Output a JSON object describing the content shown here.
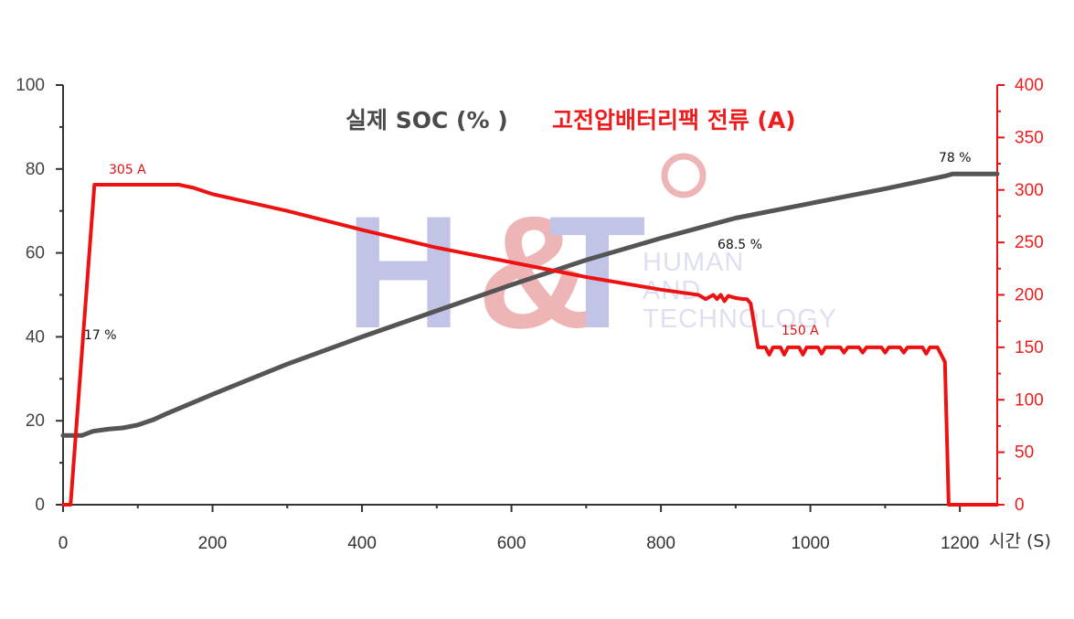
{
  "chart_data": {
    "type": "line",
    "xlabel": "시간 (S)",
    "xlim": [
      0,
      1250
    ],
    "x_ticks": [
      "0",
      "200",
      "400",
      "600",
      "800",
      "1000",
      "1200"
    ],
    "y_left": {
      "ylim": [
        0,
        100
      ],
      "ticks": [
        "0",
        "20",
        "40",
        "60",
        "80",
        "100"
      ],
      "color": "#444444"
    },
    "y_right": {
      "ylim": [
        0,
        400
      ],
      "ticks": [
        "0",
        "50",
        "100",
        "150",
        "200",
        "250",
        "300",
        "350",
        "400"
      ],
      "color": "#ee1c1c"
    },
    "legend": {
      "soc": "실제 SOC (% )",
      "current": "고전압배터리팩 전류 (A)"
    },
    "series": [
      {
        "name": "실제 SOC (% )",
        "axis": "left",
        "color": "#555555",
        "points": [
          [
            0,
            16.5
          ],
          [
            25,
            16.5
          ],
          [
            40,
            17.5
          ],
          [
            60,
            18
          ],
          [
            80,
            18.3
          ],
          [
            100,
            19
          ],
          [
            120,
            20.2
          ],
          [
            140,
            21.8
          ],
          [
            160,
            23.3
          ],
          [
            180,
            24.8
          ],
          [
            200,
            26.3
          ],
          [
            300,
            33.5
          ],
          [
            400,
            40
          ],
          [
            500,
            46.2
          ],
          [
            600,
            52.4
          ],
          [
            700,
            58.3
          ],
          [
            800,
            63.5
          ],
          [
            900,
            68.3
          ],
          [
            1000,
            71.8
          ],
          [
            1100,
            75.3
          ],
          [
            1180,
            78.3
          ],
          [
            1190,
            78.8
          ],
          [
            1250,
            78.8
          ]
        ]
      },
      {
        "name": "고전압배터리팩 전류 (A)",
        "axis": "right",
        "color": "#ee1111",
        "points": [
          [
            0,
            0
          ],
          [
            10,
            0
          ],
          [
            42,
            305
          ],
          [
            100,
            305
          ],
          [
            155,
            305
          ],
          [
            175,
            302
          ],
          [
            200,
            296
          ],
          [
            300,
            280
          ],
          [
            400,
            262
          ],
          [
            500,
            245
          ],
          [
            600,
            231
          ],
          [
            700,
            217
          ],
          [
            800,
            205
          ],
          [
            850,
            200
          ],
          [
            860,
            196
          ],
          [
            870,
            200
          ],
          [
            875,
            196
          ],
          [
            880,
            200
          ],
          [
            885,
            194
          ],
          [
            890,
            199
          ],
          [
            900,
            197
          ],
          [
            910,
            196
          ],
          [
            915,
            196
          ],
          [
            920,
            192
          ],
          [
            930,
            150
          ],
          [
            940,
            150
          ],
          [
            945,
            143
          ],
          [
            950,
            150
          ],
          [
            960,
            150
          ],
          [
            965,
            143
          ],
          [
            970,
            150
          ],
          [
            985,
            150
          ],
          [
            990,
            143
          ],
          [
            995,
            150
          ],
          [
            1010,
            150
          ],
          [
            1015,
            144
          ],
          [
            1020,
            150
          ],
          [
            1040,
            150
          ],
          [
            1045,
            145
          ],
          [
            1050,
            150
          ],
          [
            1065,
            150
          ],
          [
            1070,
            145
          ],
          [
            1075,
            150
          ],
          [
            1095,
            150
          ],
          [
            1100,
            145
          ],
          [
            1105,
            150
          ],
          [
            1120,
            150
          ],
          [
            1125,
            145
          ],
          [
            1130,
            150
          ],
          [
            1150,
            150
          ],
          [
            1155,
            144
          ],
          [
            1160,
            150
          ],
          [
            1170,
            150
          ],
          [
            1180,
            136
          ],
          [
            1185,
            0
          ],
          [
            1250,
            0
          ]
        ]
      }
    ],
    "annotations": [
      {
        "text": "305 A",
        "color": "#e01010"
      },
      {
        "text": "17 %",
        "color": "#111111"
      },
      {
        "text": "68.5 %",
        "color": "#111111"
      },
      {
        "text": "78 %",
        "color": "#111111"
      },
      {
        "text": "150 A",
        "color": "#e01010"
      }
    ]
  },
  "watermark": {
    "logo": "H&T",
    "line1": "HUMAN",
    "line2": "AND",
    "line3": "TECHNOLOGY"
  }
}
